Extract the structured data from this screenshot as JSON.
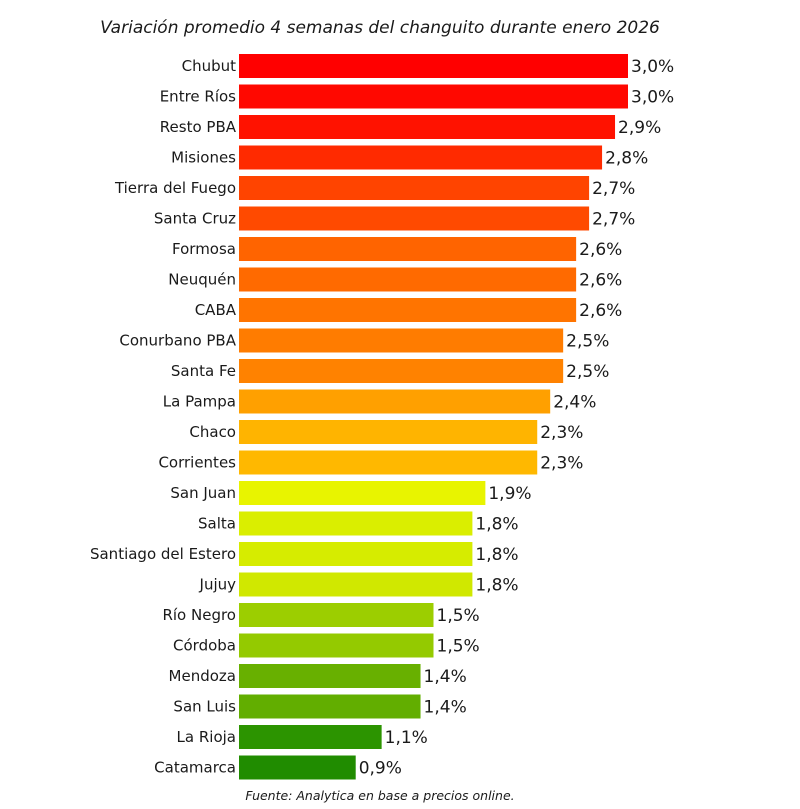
{
  "chart_data": {
    "type": "bar",
    "orientation": "horizontal",
    "title": "Variación promedio 4 semanas del changuito durante enero 2026",
    "footer": "Fuente: Analytica en base a precios online.",
    "categories": [
      "Chubut",
      "Entre Ríos",
      "Resto PBA",
      "Misiones",
      "Tierra del Fuego",
      "Santa Cruz",
      "Formosa",
      "Neuquén",
      "CABA",
      "Conurbano PBA",
      "Santa Fe",
      "La Pampa",
      "Chaco",
      "Corrientes",
      "San Juan",
      "Salta",
      "Santiago del Estero",
      "Jujuy",
      "Río Negro",
      "Córdoba",
      "Mendoza",
      "San Luis",
      "La Rioja",
      "Catamarca"
    ],
    "values": [
      3.0,
      3.0,
      2.9,
      2.8,
      2.7,
      2.7,
      2.6,
      2.6,
      2.6,
      2.5,
      2.5,
      2.4,
      2.3,
      2.3,
      1.9,
      1.8,
      1.8,
      1.8,
      1.5,
      1.5,
      1.4,
      1.4,
      1.1,
      0.9
    ],
    "value_labels": [
      "3,0%",
      "3,0%",
      "2,9%",
      "2,8%",
      "2,7%",
      "2,7%",
      "2,6%",
      "2,6%",
      "2,6%",
      "2,5%",
      "2,5%",
      "2,4%",
      "2,3%",
      "2,3%",
      "1,9%",
      "1,8%",
      "1,8%",
      "1,8%",
      "1,5%",
      "1,5%",
      "1,4%",
      "1,4%",
      "1,1%",
      "0,9%"
    ],
    "colors": [
      "#ff0000",
      "#ff0800",
      "#ff1200",
      "#ff2a00",
      "#ff4400",
      "#ff4a00",
      "#ff6400",
      "#ff6a00",
      "#ff7400",
      "#ff7c00",
      "#ff8200",
      "#ffa000",
      "#ffb400",
      "#ffb800",
      "#e8f400",
      "#daee00",
      "#d6ec00",
      "#d0e800",
      "#9cce00",
      "#94ca00",
      "#68b000",
      "#62ae00",
      "#2c9400",
      "#208c00"
    ],
    "xlim": [
      0,
      3.0
    ],
    "grid": false,
    "legend": "none"
  }
}
